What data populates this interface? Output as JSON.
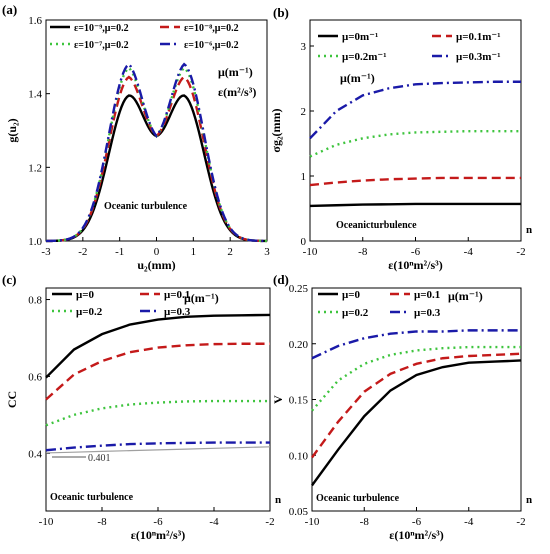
{
  "chart_data": [
    {
      "panel_label": "(a)",
      "type": "line",
      "xlabel": "u₂(mm)",
      "ylabel": "g(u₂)",
      "xlim": [
        -3,
        3
      ],
      "ylim": [
        1.0,
        1.6
      ],
      "xticks": [
        -3,
        -2,
        -1,
        0,
        1,
        2,
        3
      ],
      "yticks": [
        1.0,
        1.2,
        1.4,
        1.6
      ],
      "grid": false,
      "legend_placement": "top",
      "units_note": [
        "μ(m⁻¹)",
        "ε(m²/s³)"
      ],
      "annotation": "Oceanic turbulence",
      "series": [
        {
          "name": "ε=10⁻⁹,μ=0.2",
          "color": "#000000",
          "dash": "solid",
          "peak": 1.395,
          "center": 1.285
        },
        {
          "name": "ε=10⁻⁸,μ=0.2",
          "color": "#c41a1a",
          "dash": "dash",
          "peak": 1.445,
          "center": 1.285
        },
        {
          "name": "ε=10⁻⁷,μ=0.2",
          "color": "#3ec43e",
          "dash": "dot",
          "peak": 1.47,
          "center": 1.285
        },
        {
          "name": "ε=10⁻⁶,μ=0.2",
          "color": "#1a1aa8",
          "dash": "dashdot",
          "peak": 1.48,
          "center": 1.285
        }
      ]
    },
    {
      "panel_label": "(b)",
      "type": "line",
      "xlabel": "ε(10ⁿm²/s³)",
      "ylabel": "σg₂(mm)",
      "xlim": [
        -10,
        -2
      ],
      "ylim": [
        0,
        3.4
      ],
      "xticks": [
        -10,
        -8,
        -6,
        -4,
        -2
      ],
      "yticks": [
        0,
        1,
        2,
        3
      ],
      "grid": false,
      "legend_placement": "top",
      "units_note": [
        "μ(m⁻¹)"
      ],
      "annotation": "Oceanicturbulence",
      "axis_suffix": "n",
      "x": [
        -10,
        -9,
        -8,
        -7,
        -6,
        -5,
        -4,
        -3,
        -2
      ],
      "series": [
        {
          "name": "μ=0m⁻¹",
          "color": "#000000",
          "dash": "solid",
          "values": [
            0.54,
            0.55,
            0.56,
            0.565,
            0.57,
            0.57,
            0.57,
            0.57,
            0.57
          ]
        },
        {
          "name": "μ=0.1m⁻¹",
          "color": "#c41a1a",
          "dash": "dash",
          "values": [
            0.86,
            0.9,
            0.93,
            0.95,
            0.96,
            0.97,
            0.97,
            0.97,
            0.97
          ]
        },
        {
          "name": "μ=0.2m⁻¹",
          "color": "#3ec43e",
          "dash": "dot",
          "values": [
            1.3,
            1.48,
            1.58,
            1.64,
            1.67,
            1.68,
            1.69,
            1.69,
            1.69
          ]
        },
        {
          "name": "μ=0.3m⁻¹",
          "color": "#1a1aa8",
          "dash": "dashdot",
          "values": [
            1.58,
            2.0,
            2.24,
            2.35,
            2.41,
            2.43,
            2.44,
            2.45,
            2.45
          ]
        }
      ]
    },
    {
      "panel_label": "(c)",
      "type": "line",
      "xlabel": "ε(10ⁿm²/s³)",
      "ylabel": "CC",
      "xlim": [
        -10,
        -2
      ],
      "ylim": [
        0.25,
        0.83
      ],
      "xticks": [
        -10,
        -8,
        -6,
        -4,
        -2
      ],
      "yticks": [
        0.4,
        0.6,
        0.8
      ],
      "grid": false,
      "legend_placement": "top",
      "units_note": [
        "μ(m⁻¹)"
      ],
      "annotation": "Oceanic turbulence",
      "axis_suffix": "n",
      "callout": "0.401",
      "x": [
        -10,
        -9,
        -8,
        -7,
        -6,
        -5,
        -4,
        -3,
        -2
      ],
      "series": [
        {
          "name": "μ=0",
          "color": "#000000",
          "dash": "solid",
          "values": [
            0.597,
            0.67,
            0.71,
            0.735,
            0.748,
            0.755,
            0.758,
            0.759,
            0.76
          ]
        },
        {
          "name": "μ=0.1",
          "color": "#c41a1a",
          "dash": "dash",
          "values": [
            0.54,
            0.605,
            0.64,
            0.663,
            0.675,
            0.681,
            0.684,
            0.685,
            0.685
          ]
        },
        {
          "name": "μ=0.2",
          "color": "#3ec43e",
          "dash": "dot",
          "values": [
            0.473,
            0.5,
            0.517,
            0.527,
            0.532,
            0.535,
            0.536,
            0.536,
            0.536
          ]
        },
        {
          "name": "μ=0.3",
          "color": "#1a1aa8",
          "dash": "dashdot",
          "values": [
            0.408,
            0.415,
            0.42,
            0.424,
            0.426,
            0.427,
            0.428,
            0.428,
            0.428
          ]
        },
        {
          "name": "",
          "color": "#a0a0a0",
          "dash": "solid",
          "values": [
            0.401,
            0.403,
            0.405,
            0.407,
            0.409,
            0.411,
            0.413,
            0.415,
            0.417
          ]
        }
      ]
    },
    {
      "panel_label": "(d)",
      "type": "line",
      "xlabel": "ε(10ⁿm²/s³)",
      "ylabel": "V",
      "xlim": [
        -10,
        -2
      ],
      "ylim": [
        0.05,
        0.25
      ],
      "xticks": [
        -10,
        -8,
        -6,
        -4,
        -2
      ],
      "yticks": [
        0.05,
        0.1,
        0.15,
        0.2,
        0.25
      ],
      "ytick_labels": [
        "0.05",
        "0.10",
        "0.15",
        "0.20",
        "0.25"
      ],
      "grid": false,
      "legend_placement": "top",
      "units_note": [
        "μ(m⁻¹)"
      ],
      "annotation": "Oceanic turbulence",
      "axis_suffix": "n",
      "x": [
        -10,
        -9,
        -8,
        -7,
        -6,
        -5,
        -4,
        -3,
        -2
      ],
      "series": [
        {
          "name": "μ=0",
          "color": "#000000",
          "dash": "solid",
          "values": [
            0.073,
            0.105,
            0.135,
            0.158,
            0.172,
            0.179,
            0.183,
            0.184,
            0.185
          ]
        },
        {
          "name": "μ=0.1",
          "color": "#c41a1a",
          "dash": "dash",
          "values": [
            0.098,
            0.13,
            0.157,
            0.173,
            0.182,
            0.187,
            0.189,
            0.19,
            0.191
          ]
        },
        {
          "name": "μ=0.2",
          "color": "#3ec43e",
          "dash": "dot",
          "values": [
            0.14,
            0.167,
            0.182,
            0.19,
            0.194,
            0.196,
            0.197,
            0.197,
            0.197
          ]
        },
        {
          "name": "μ=0.3",
          "color": "#1a1aa8",
          "dash": "dashdot",
          "values": [
            0.187,
            0.198,
            0.205,
            0.209,
            0.211,
            0.211,
            0.212,
            0.212,
            0.212
          ]
        }
      ]
    }
  ]
}
